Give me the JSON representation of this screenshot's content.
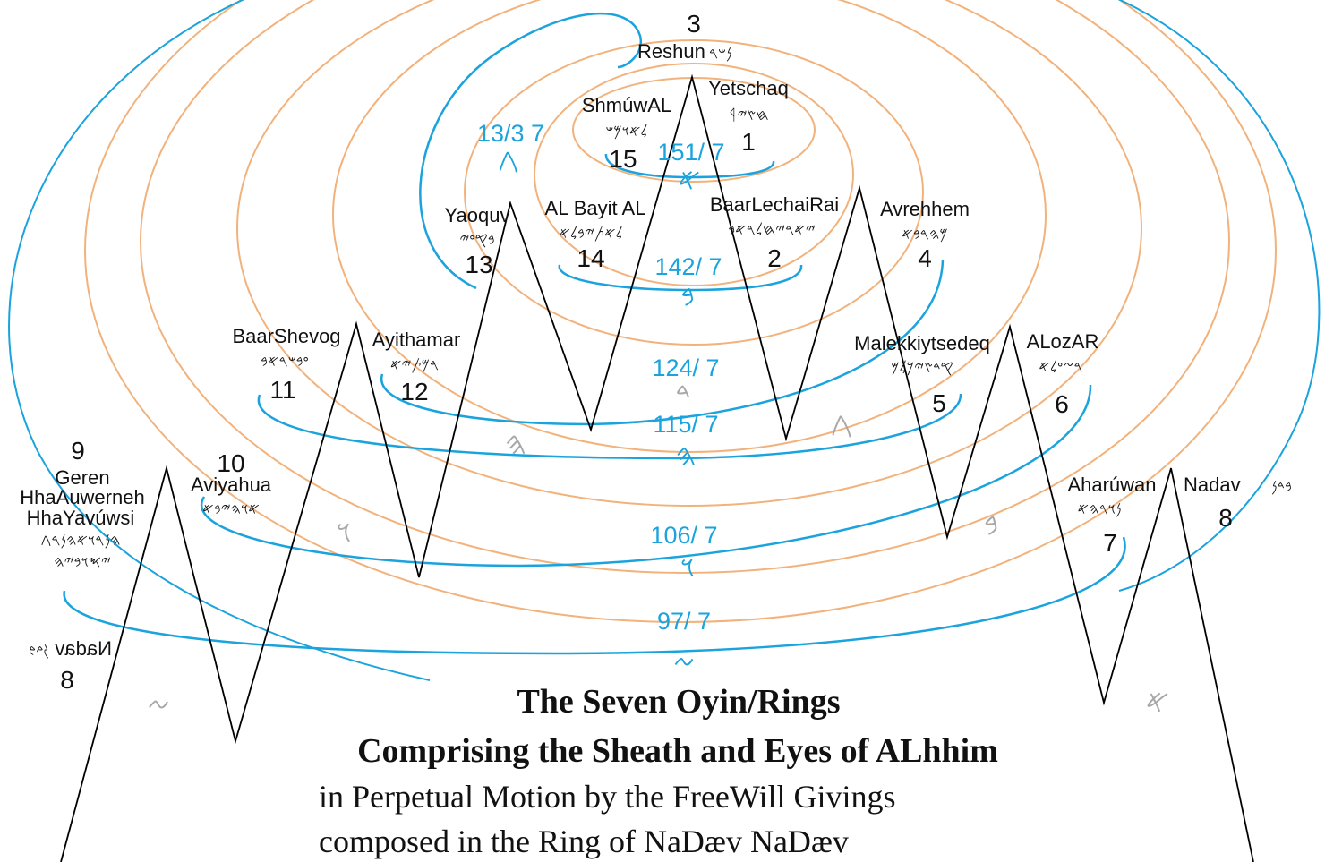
{
  "colors": {
    "ring": "#f2b27c",
    "blue": "#1aa3dd",
    "gray": "#a8a8a8",
    "ink": "#111111"
  },
  "nodes": {
    "n1": {
      "name": "Yetschaq",
      "glyphs": "ᛩ𐤇𐤑𐤉",
      "number": "1"
    },
    "n2": {
      "name": "BaarLechaiRai",
      "glyphs": "𐤉𐤀𐤓𐤉𐤇𐤋𐤓𐤀𐤁",
      "number": "2"
    },
    "n3": {
      "name": "Reshun",
      "glyphs": "𐤍𐤔𐤓",
      "number": "3"
    },
    "n4": {
      "name": "Avrehhem",
      "glyphs": "𐤌𐤄𐤓𐤁𐤀",
      "number": "4"
    },
    "n5": {
      "name": "Malekkiytsedeq",
      "glyphs": "𐤒𐤃𐤑𐤉𐤊𐤋𐤌",
      "number": "5"
    },
    "n6": {
      "name": "ALozAR",
      "glyphs": "𐤓𐤆𐤏𐤋𐤀",
      "number": "6"
    },
    "n7": {
      "name": "Aharúwan",
      "glyphs": "𐤍𐤅𐤓𐤄𐤀",
      "number": "7"
    },
    "n8": {
      "name": "Nadav",
      "glyphs": "𐤁𐤃𐤍",
      "number": "8"
    },
    "n8b": {
      "name": "Nadav",
      "glyphs": "𐤁𐤃𐤍",
      "number": "8"
    },
    "n9": {
      "line1": "Geren",
      "line2": "HhaAuwerneh",
      "line3": "HhaYavúwsi",
      "glyphs1": "𐤄𐤍𐤓𐤅𐤀𐤄𐤍𐤓𐤂",
      "glyphs2": "𐤉𐤎𐤅𐤁𐤉𐤄",
      "number": "9"
    },
    "n10": {
      "name": "Aviyahua",
      "glyphs": "𐤀𐤅𐤄𐤉𐤁𐤀",
      "number": "10"
    },
    "n11": {
      "name": "BaarShevog",
      "glyphs": "𐤏𐤁𐤔𐤓𐤀𐤁",
      "number": "11"
    },
    "n12": {
      "name": "Ayithamar",
      "glyphs": "𐤓𐤌𐤕𐤉𐤀",
      "number": "12"
    },
    "n13": {
      "name": "Yaoquv",
      "glyphs": "𐤁𐤒𐤏𐤉",
      "number": "13"
    },
    "n14": {
      "name": "AL Bayit AL",
      "glyphs": "𐤋𐤀𐤕𐤉𐤁𐤋𐤀",
      "number": "14"
    },
    "n15": {
      "name": "ShmúwAL",
      "glyphs": "𐤋𐤀𐤅𐤌𐤔",
      "number": "15"
    }
  },
  "ratios": {
    "r1": {
      "text": "13/3 7",
      "glyph": "𐤂"
    },
    "r2": {
      "text": "151/ 7",
      "glyph": "𐤀"
    },
    "r3": {
      "text": "142/ 7",
      "glyph": "𐤁"
    },
    "r4": {
      "text": "124/ 7",
      "glyph": "𐤃"
    },
    "r5": {
      "text": "115/ 7",
      "glyph": "𐤄"
    },
    "r6": {
      "text": "106/ 7",
      "glyph": "𐤅"
    },
    "r7": {
      "text": "97/ 7",
      "glyph": "𐤆"
    }
  },
  "gray_glyphs": {
    "g1": "𐤆",
    "g2": "𐤅",
    "g3": "𐤄",
    "g4": "𐤃",
    "g5": "𐤂",
    "g6": "𐤁",
    "g7": "𐤀"
  },
  "title": {
    "line1": "The Seven Oyin/Rings",
    "line2": "Comprising the Sheath and Eyes of ALhhim",
    "line3": "in Perpetual Motion by the FreeWill Givings",
    "line4": "composed in the Ring of NaDæv NaDæv"
  }
}
